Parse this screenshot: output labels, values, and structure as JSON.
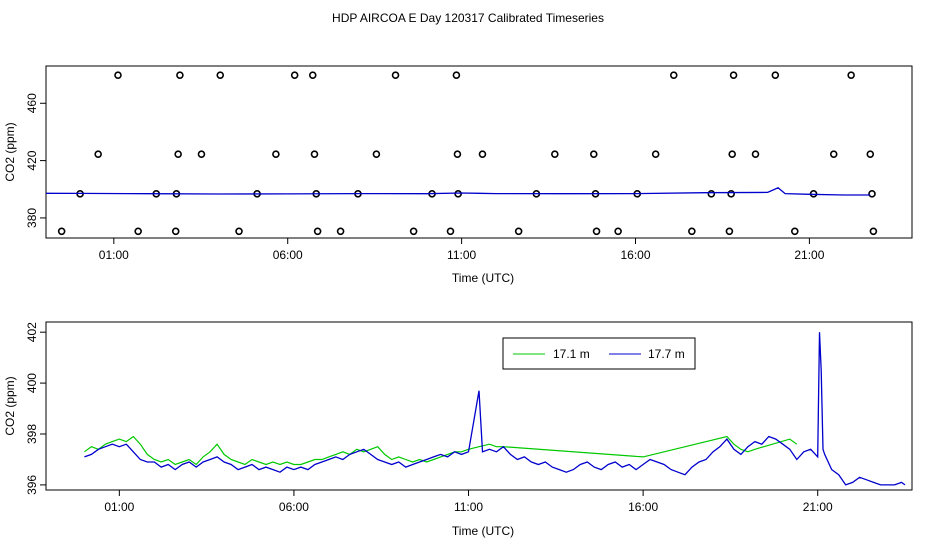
{
  "page_title": "HDP AIRCOA E  Day 120317  Calibrated Timeseries",
  "colors": {
    "line_17_1": "#00c800",
    "line_17_7": "#0000cc",
    "axes": "#000000"
  },
  "chart_data": [
    {
      "type": "scatter",
      "xlabel": "Time (UTC)",
      "ylabel": "CO2 (ppm)",
      "xlim": [
        -0.95,
        23.95
      ],
      "ylim": [
        366,
        486
      ],
      "x_ticks": [
        1,
        6,
        11,
        16,
        21
      ],
      "x_tick_labels": [
        "01:00",
        "06:00",
        "11:00",
        "16:00",
        "21:00"
      ],
      "y_ticks": [
        380,
        420,
        460
      ],
      "y_tick_labels": [
        "380",
        "420",
        "460"
      ],
      "series": [
        {
          "values": [
            [
              -0.5,
              370.7
            ],
            [
              0.03,
              396.8
            ],
            [
              0.55,
              424.5
            ],
            [
              1.12,
              479.6
            ],
            [
              1.7,
              370.7
            ],
            [
              2.22,
              396.8
            ],
            [
              2.78,
              370.7
            ],
            [
              2.8,
              396.8
            ],
            [
              2.85,
              424.5
            ],
            [
              2.9,
              479.6
            ],
            [
              3.52,
              424.5
            ],
            [
              4.06,
              479.6
            ],
            [
              4.6,
              370.7
            ],
            [
              5.12,
              396.8
            ],
            [
              5.66,
              424.5
            ],
            [
              6.2,
              479.6
            ],
            [
              6.72,
              479.6
            ],
            [
              6.77,
              424.5
            ],
            [
              6.82,
              396.8
            ],
            [
              6.86,
              370.7
            ],
            [
              7.52,
              370.7
            ],
            [
              8.02,
              396.8
            ],
            [
              8.55,
              424.5
            ],
            [
              9.1,
              479.6
            ],
            [
              9.62,
              370.7
            ],
            [
              10.15,
              396.8
            ],
            [
              10.68,
              370.7
            ],
            [
              10.85,
              479.6
            ],
            [
              10.88,
              424.5
            ],
            [
              10.9,
              396.8
            ],
            [
              11.6,
              424.5
            ],
            [
              12.64,
              370.7
            ],
            [
              13.15,
              396.8
            ],
            [
              13.68,
              424.5
            ],
            [
              14.8,
              424.5
            ],
            [
              14.85,
              396.8
            ],
            [
              14.88,
              370.7
            ],
            [
              15.5,
              370.7
            ],
            [
              16.05,
              396.8
            ],
            [
              16.58,
              424.5
            ],
            [
              17.1,
              479.6
            ],
            [
              17.62,
              370.7
            ],
            [
              18.18,
              396.8
            ],
            [
              18.7,
              370.7
            ],
            [
              18.75,
              396.8
            ],
            [
              18.78,
              424.5
            ],
            [
              18.82,
              479.6
            ],
            [
              19.45,
              424.5
            ],
            [
              20.02,
              479.6
            ],
            [
              20.58,
              370.7
            ],
            [
              21.12,
              396.8
            ],
            [
              21.7,
              424.5
            ],
            [
              22.2,
              479.6
            ],
            [
              22.75,
              424.5
            ],
            [
              22.8,
              396.8
            ],
            [
              22.84,
              370.7
            ]
          ]
        },
        {
          "values": [
            [
              -0.95,
              397.2
            ],
            [
              0.0,
              397.1
            ],
            [
              2.0,
              396.9
            ],
            [
              4.0,
              396.7
            ],
            [
              6.0,
              396.8
            ],
            [
              8.0,
              397.0
            ],
            [
              10.0,
              396.9
            ],
            [
              11.0,
              397.4
            ],
            [
              11.5,
              397.2
            ],
            [
              12.0,
              397.0
            ],
            [
              14.0,
              396.9
            ],
            [
              16.0,
              397.0
            ],
            [
              18.0,
              397.6
            ],
            [
              19.8,
              397.8
            ],
            [
              20.1,
              401.0
            ],
            [
              20.3,
              397.0
            ],
            [
              21.0,
              396.5
            ],
            [
              22.0,
              396.0
            ],
            [
              22.75,
              396.0
            ]
          ]
        }
      ]
    },
    {
      "type": "line",
      "xlabel": "Time (UTC)",
      "ylabel": "CO2 (ppm)",
      "xlim": [
        -1.1,
        23.7
      ],
      "ylim": [
        395.8,
        402.4
      ],
      "x_ticks": [
        1,
        6,
        11,
        16,
        21
      ],
      "x_tick_labels": [
        "01:00",
        "06:00",
        "11:00",
        "16:00",
        "21:00"
      ],
      "y_ticks": [
        396,
        398,
        400,
        402
      ],
      "y_tick_labels": [
        "396",
        "398",
        "400",
        "402"
      ],
      "legend_position": "top-right",
      "series": [
        {
          "name": "17.1 m",
          "color": "#00c800",
          "x": [
            0.0,
            0.2,
            0.4,
            0.6,
            0.8,
            1.0,
            1.2,
            1.4,
            1.6,
            1.8,
            2.0,
            2.2,
            2.4,
            2.6,
            2.8,
            3.0,
            3.2,
            3.4,
            3.6,
            3.8,
            4.0,
            4.2,
            4.4,
            4.6,
            4.8,
            5.0,
            5.2,
            5.4,
            5.6,
            5.8,
            6.0,
            6.2,
            6.4,
            6.6,
            6.8,
            7.0,
            7.2,
            7.4,
            7.6,
            7.8,
            8.0,
            8.2,
            8.4,
            8.6,
            8.8,
            9.0,
            9.2,
            9.4,
            9.6,
            9.8,
            10.0,
            10.2,
            10.4,
            10.6,
            10.8,
            11.0,
            11.3,
            11.6,
            11.8,
            12.0,
            16.0,
            18.4,
            18.6,
            18.8,
            19.0,
            19.2,
            20.2,
            20.4
          ],
          "values": [
            397.3,
            397.5,
            397.4,
            397.6,
            397.7,
            397.8,
            397.7,
            397.9,
            397.6,
            397.2,
            397.0,
            396.9,
            397.0,
            396.8,
            396.9,
            397.0,
            396.8,
            397.1,
            397.3,
            397.6,
            397.2,
            397.0,
            396.9,
            396.8,
            397.0,
            396.9,
            396.8,
            396.9,
            396.8,
            396.9,
            396.8,
            396.8,
            396.9,
            397.0,
            397.0,
            397.1,
            397.2,
            397.3,
            397.2,
            397.4,
            397.3,
            397.4,
            397.5,
            397.2,
            397.0,
            397.1,
            397.0,
            396.9,
            397.0,
            396.9,
            397.0,
            397.1,
            397.2,
            397.3,
            397.3,
            397.4,
            397.5,
            397.6,
            397.5,
            397.5,
            397.1,
            397.9,
            397.6,
            397.4,
            397.3,
            397.4,
            397.8,
            397.6
          ]
        },
        {
          "name": "17.7 m",
          "color": "#0000cc",
          "x": [
            0.0,
            0.2,
            0.4,
            0.6,
            0.8,
            1.0,
            1.2,
            1.4,
            1.6,
            1.8,
            2.0,
            2.2,
            2.4,
            2.6,
            2.8,
            3.0,
            3.2,
            3.4,
            3.6,
            3.8,
            4.0,
            4.2,
            4.4,
            4.6,
            4.8,
            5.0,
            5.2,
            5.4,
            5.6,
            5.8,
            6.0,
            6.2,
            6.4,
            6.6,
            6.8,
            7.0,
            7.2,
            7.4,
            7.6,
            7.8,
            8.0,
            8.2,
            8.4,
            8.6,
            8.8,
            9.0,
            9.2,
            9.4,
            9.6,
            9.8,
            10.0,
            10.2,
            10.4,
            10.6,
            10.8,
            11.0,
            11.2,
            11.3,
            11.4,
            11.6,
            11.8,
            12.0,
            12.2,
            12.4,
            12.6,
            12.8,
            13.0,
            13.2,
            13.4,
            13.6,
            13.8,
            14.0,
            14.2,
            14.4,
            14.6,
            14.8,
            15.0,
            15.2,
            15.4,
            15.6,
            15.8,
            16.0,
            16.2,
            16.4,
            16.6,
            16.8,
            17.0,
            17.2,
            17.4,
            17.6,
            17.8,
            18.0,
            18.2,
            18.4,
            18.6,
            18.8,
            19.0,
            19.2,
            19.4,
            19.6,
            19.8,
            20.0,
            20.2,
            20.4,
            20.6,
            20.8,
            21.0,
            21.05,
            21.1,
            21.15,
            21.2,
            21.4,
            21.6,
            21.8,
            22.0,
            22.2,
            22.4,
            22.6,
            22.8,
            23.0,
            23.2,
            23.4,
            23.5
          ],
          "values": [
            397.1,
            397.2,
            397.4,
            397.5,
            397.6,
            397.5,
            397.6,
            397.3,
            397.0,
            396.9,
            396.9,
            396.7,
            396.8,
            396.6,
            396.8,
            396.9,
            396.7,
            396.9,
            397.0,
            397.1,
            396.9,
            396.8,
            396.6,
            396.7,
            396.8,
            396.6,
            396.7,
            396.6,
            396.5,
            396.7,
            396.6,
            396.7,
            396.6,
            396.8,
            396.9,
            397.0,
            397.1,
            397.0,
            397.2,
            397.3,
            397.4,
            397.2,
            397.0,
            396.9,
            396.8,
            396.9,
            396.7,
            396.8,
            396.9,
            397.0,
            397.1,
            397.2,
            397.1,
            397.3,
            397.2,
            397.3,
            398.9,
            399.7,
            397.3,
            397.4,
            397.3,
            397.5,
            397.2,
            397.0,
            397.1,
            396.9,
            396.8,
            396.9,
            396.7,
            396.6,
            396.5,
            396.6,
            396.8,
            396.9,
            396.7,
            396.6,
            396.8,
            396.9,
            396.7,
            396.8,
            396.6,
            396.8,
            397.0,
            396.9,
            396.8,
            396.6,
            396.5,
            396.4,
            396.7,
            396.9,
            397.0,
            397.3,
            397.5,
            397.8,
            397.4,
            397.2,
            397.5,
            397.7,
            397.6,
            397.9,
            397.8,
            397.6,
            397.4,
            397.0,
            397.3,
            397.4,
            397.1,
            402.0,
            400.5,
            397.4,
            397.2,
            396.6,
            396.4,
            396.0,
            396.1,
            396.3,
            396.2,
            396.1,
            396.0,
            396.0,
            396.0,
            396.1,
            396.0
          ]
        }
      ]
    }
  ]
}
